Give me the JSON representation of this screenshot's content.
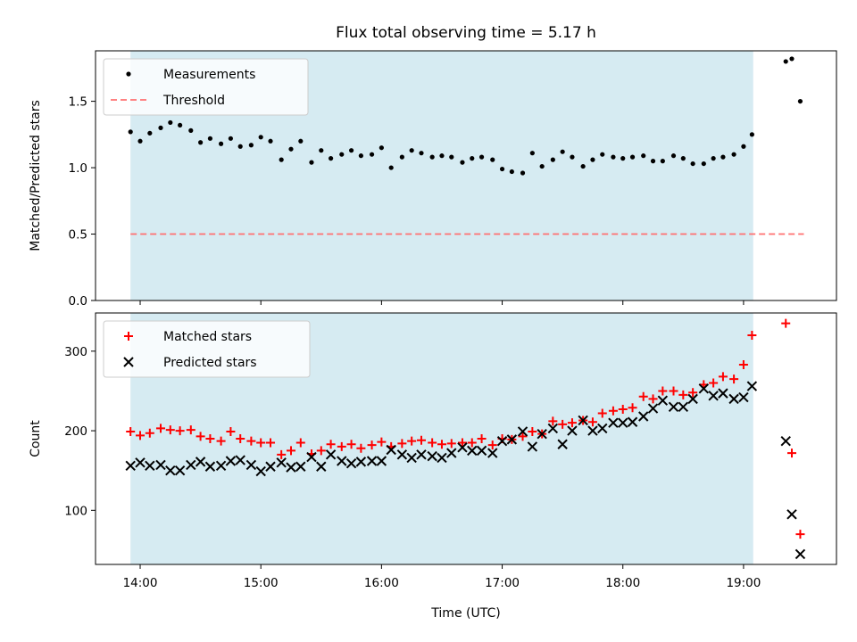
{
  "chart_data": {
    "title": "Flux total observing time = 5.17 h",
    "xlabel": "Time (UTC)",
    "x_unit": "hours UTC",
    "x_ticks": [
      14,
      15,
      16,
      17,
      18,
      19
    ],
    "x_tick_labels": [
      "14:00",
      "15:00",
      "16:00",
      "17:00",
      "18:00",
      "19:00"
    ],
    "xlim": [
      13.63,
      19.77
    ],
    "shaded_interval": {
      "start": 13.92,
      "end": 19.08,
      "color": "#add8e6",
      "opacity": 0.5
    },
    "panels": [
      {
        "type": "scatter",
        "ylabel": "Matched/Predicted stars",
        "ylim": [
          0,
          1.88
        ],
        "y_ticks": [
          0.0,
          0.5,
          1.0,
          1.5
        ],
        "y_tick_labels": [
          "0.0",
          "0.5",
          "1.0",
          "1.5"
        ],
        "legend": {
          "position": "upper-left",
          "entries": [
            "Measurements",
            "Threshold"
          ]
        },
        "series": [
          {
            "name": "Measurements",
            "marker": "dot",
            "color": "#000000",
            "x": [
              13.92,
              14.0,
              14.08,
              14.17,
              14.25,
              14.33,
              14.42,
              14.5,
              14.58,
              14.67,
              14.75,
              14.83,
              14.92,
              15.0,
              15.08,
              15.17,
              15.25,
              15.33,
              15.42,
              15.5,
              15.58,
              15.67,
              15.75,
              15.83,
              15.92,
              16.0,
              16.08,
              16.17,
              16.25,
              16.33,
              16.42,
              16.5,
              16.58,
              16.67,
              16.75,
              16.83,
              16.92,
              17.0,
              17.08,
              17.17,
              17.25,
              17.33,
              17.42,
              17.5,
              17.58,
              17.67,
              17.75,
              17.83,
              17.92,
              18.0,
              18.08,
              18.17,
              18.25,
              18.33,
              18.42,
              18.5,
              18.58,
              18.67,
              18.75,
              18.83,
              18.92,
              19.0,
              19.07,
              19.35,
              19.4,
              19.47
            ],
            "y": [
              1.27,
              1.2,
              1.26,
              1.3,
              1.34,
              1.32,
              1.28,
              1.19,
              1.22,
              1.18,
              1.22,
              1.16,
              1.17,
              1.23,
              1.2,
              1.06,
              1.14,
              1.2,
              1.04,
              1.13,
              1.07,
              1.1,
              1.13,
              1.09,
              1.1,
              1.15,
              1.0,
              1.08,
              1.13,
              1.11,
              1.08,
              1.09,
              1.08,
              1.04,
              1.07,
              1.08,
              1.06,
              0.99,
              0.97,
              0.96,
              1.11,
              1.01,
              1.06,
              1.12,
              1.08,
              1.01,
              1.06,
              1.1,
              1.08,
              1.07,
              1.08,
              1.09,
              1.05,
              1.05,
              1.09,
              1.07,
              1.03,
              1.03,
              1.07,
              1.08,
              1.1,
              1.16,
              1.25,
              1.8,
              1.82,
              1.5
            ]
          },
          {
            "name": "Threshold",
            "type": "line",
            "style": "dashed",
            "color": "#ff7070",
            "x": [
              13.92,
              19.5
            ],
            "y": [
              0.5,
              0.5
            ]
          }
        ]
      },
      {
        "type": "scatter",
        "ylabel": "Count",
        "ylim": [
          32,
          348
        ],
        "y_ticks": [
          100,
          200,
          300
        ],
        "y_tick_labels": [
          "100",
          "200",
          "300"
        ],
        "legend": {
          "position": "upper-left",
          "entries": [
            "Matched stars",
            "Predicted stars"
          ]
        },
        "series": [
          {
            "name": "Matched stars",
            "marker": "plus",
            "color": "#ff0000",
            "x": [
              13.92,
              14.0,
              14.08,
              14.17,
              14.25,
              14.33,
              14.42,
              14.5,
              14.58,
              14.67,
              14.75,
              14.83,
              14.92,
              15.0,
              15.08,
              15.17,
              15.25,
              15.33,
              15.42,
              15.5,
              15.58,
              15.67,
              15.75,
              15.83,
              15.92,
              16.0,
              16.08,
              16.17,
              16.25,
              16.33,
              16.42,
              16.5,
              16.58,
              16.67,
              16.75,
              16.83,
              16.92,
              17.0,
              17.08,
              17.17,
              17.25,
              17.33,
              17.42,
              17.5,
              17.58,
              17.67,
              17.75,
              17.83,
              17.92,
              18.0,
              18.08,
              18.17,
              18.25,
              18.33,
              18.42,
              18.5,
              18.58,
              18.67,
              18.75,
              18.83,
              18.92,
              19.0,
              19.07,
              19.35,
              19.4,
              19.47
            ],
            "y": [
              199,
              194,
              197,
              203,
              201,
              200,
              201,
              193,
              190,
              187,
              199,
              190,
              187,
              185,
              185,
              170,
              175,
              185,
              171,
              175,
              183,
              180,
              183,
              178,
              182,
              186,
              180,
              184,
              187,
              188,
              185,
              183,
              184,
              185,
              185,
              190,
              182,
              190,
              189,
              193,
              199,
              196,
              212,
              208,
              210,
              213,
              211,
              222,
              225,
              227,
              229,
              243,
              240,
              250,
              250,
              245,
              248,
              258,
              260,
              268,
              265,
              283,
              320,
              335,
              172,
              70
            ]
          },
          {
            "name": "Predicted stars",
            "marker": "x",
            "color": "#000000",
            "x": [
              13.92,
              14.0,
              14.08,
              14.17,
              14.25,
              14.33,
              14.42,
              14.5,
              14.58,
              14.67,
              14.75,
              14.83,
              14.92,
              15.0,
              15.08,
              15.17,
              15.25,
              15.33,
              15.42,
              15.5,
              15.58,
              15.67,
              15.75,
              15.83,
              15.92,
              16.0,
              16.08,
              16.17,
              16.25,
              16.33,
              16.42,
              16.5,
              16.58,
              16.67,
              16.75,
              16.83,
              16.92,
              17.0,
              17.08,
              17.17,
              17.25,
              17.33,
              17.42,
              17.5,
              17.58,
              17.67,
              17.75,
              17.83,
              17.92,
              18.0,
              18.08,
              18.17,
              18.25,
              18.33,
              18.42,
              18.5,
              18.58,
              18.67,
              18.75,
              18.83,
              18.92,
              19.0,
              19.07,
              19.35,
              19.4,
              19.47
            ],
            "y": [
              156,
              160,
              156,
              157,
              150,
              150,
              157,
              161,
              155,
              156,
              162,
              163,
              157,
              149,
              155,
              160,
              154,
              155,
              167,
              155,
              170,
              162,
              159,
              161,
              162,
              162,
              176,
              170,
              166,
              170,
              168,
              166,
              172,
              179,
              175,
              175,
              172,
              187,
              189,
              199,
              180,
              196,
              203,
              183,
              200,
              213,
              200,
              203,
              210,
              210,
              211,
              218,
              228,
              238,
              230,
              230,
              240,
              253,
              244,
              247,
              240,
              242,
              256,
              187,
              95,
              45
            ]
          }
        ]
      }
    ]
  }
}
